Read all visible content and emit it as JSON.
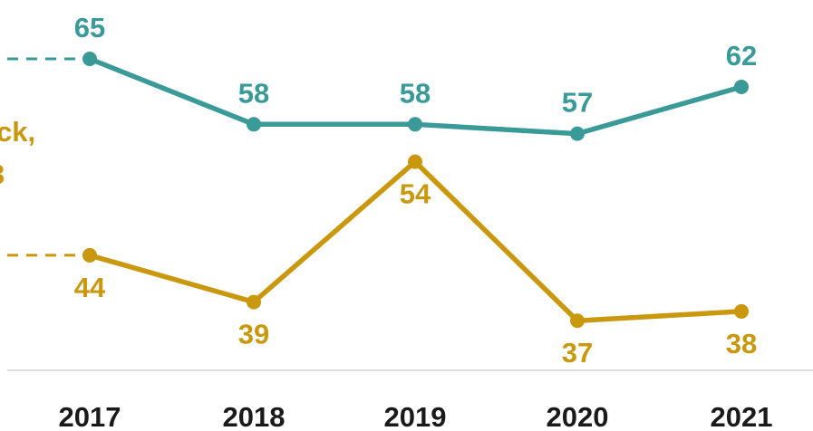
{
  "chart_data": {
    "type": "line",
    "categories": [
      "2017",
      "2018",
      "2019",
      "2020",
      "2021"
    ],
    "series": [
      {
        "values": [
          65,
          58,
          58,
          57,
          62
        ],
        "color": "#3a9a98"
      },
      {
        "values": [
          44,
          39,
          54,
          37,
          38
        ],
        "color": "#c9980e"
      }
    ],
    "partial_labels": [
      "ck,",
      "3"
    ],
    "grid": false,
    "baseline_color": "#dcdcdc"
  }
}
